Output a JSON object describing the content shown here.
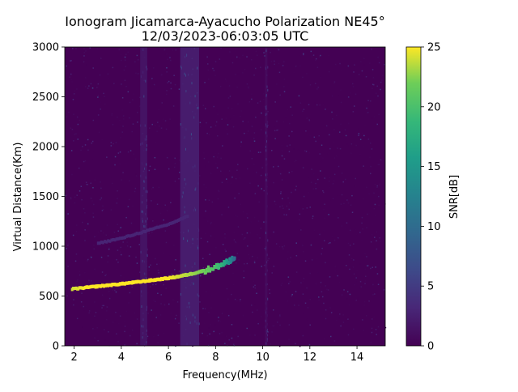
{
  "chart_data": {
    "type": "heatmap",
    "title": "Ionogram Jicamarca-Ayacucho Polarization NE45°",
    "subtitle": "12/03/2023-06:03:05 UTC",
    "xlabel": "Frequency(MHz)",
    "ylabel": "Virtual Distance(Km)",
    "xlim": [
      1.6,
      15.2
    ],
    "ylim": [
      0,
      3000
    ],
    "x_ticks": [
      2,
      4,
      6,
      8,
      10,
      12,
      14
    ],
    "y_ticks": [
      0,
      500,
      1000,
      1500,
      2000,
      2500,
      3000
    ],
    "colorbar": {
      "label": "SNR[dB]",
      "range": [
        0,
        25
      ],
      "ticks": [
        0,
        5,
        10,
        15,
        20,
        25
      ],
      "colormap": "viridis"
    },
    "grid": false,
    "background_colors": {
      "low": "#440154",
      "noise": "#3b528b",
      "high": "#fde725"
    },
    "traces": [
      {
        "description_key": "primary_echo",
        "points": [
          {
            "x": 1.9,
            "y": 570,
            "snr": 24
          },
          {
            "x": 2.5,
            "y": 585,
            "snr": 25
          },
          {
            "x": 3.0,
            "y": 598,
            "snr": 25
          },
          {
            "x": 3.5,
            "y": 610,
            "snr": 25
          },
          {
            "x": 4.0,
            "y": 622,
            "snr": 25
          },
          {
            "x": 4.5,
            "y": 636,
            "snr": 25
          },
          {
            "x": 5.0,
            "y": 650,
            "snr": 25
          },
          {
            "x": 5.5,
            "y": 665,
            "snr": 25
          },
          {
            "x": 6.0,
            "y": 680,
            "snr": 25
          },
          {
            "x": 6.5,
            "y": 700,
            "snr": 24
          },
          {
            "x": 7.0,
            "y": 725,
            "snr": 23
          },
          {
            "x": 7.5,
            "y": 755,
            "snr": 22
          },
          {
            "x": 8.0,
            "y": 790,
            "snr": 20
          },
          {
            "x": 8.3,
            "y": 820,
            "snr": 18
          },
          {
            "x": 8.6,
            "y": 850,
            "snr": 14
          },
          {
            "x": 8.8,
            "y": 880,
            "snr": 10
          }
        ]
      },
      {
        "description_key": "second_hop",
        "points": [
          {
            "x": 3.0,
            "y": 1030,
            "snr": 3
          },
          {
            "x": 4.0,
            "y": 1080,
            "snr": 3
          },
          {
            "x": 5.0,
            "y": 1150,
            "snr": 3
          },
          {
            "x": 6.0,
            "y": 1220,
            "snr": 3
          },
          {
            "x": 6.8,
            "y": 1300,
            "snr": 3
          }
        ]
      }
    ],
    "interference_bands_mhz": [
      {
        "from": 4.8,
        "to": 5.1,
        "snr": 2
      },
      {
        "from": 6.5,
        "to": 7.3,
        "snr": 3
      },
      {
        "from": 10.1,
        "to": 10.2,
        "snr": 1
      }
    ]
  }
}
